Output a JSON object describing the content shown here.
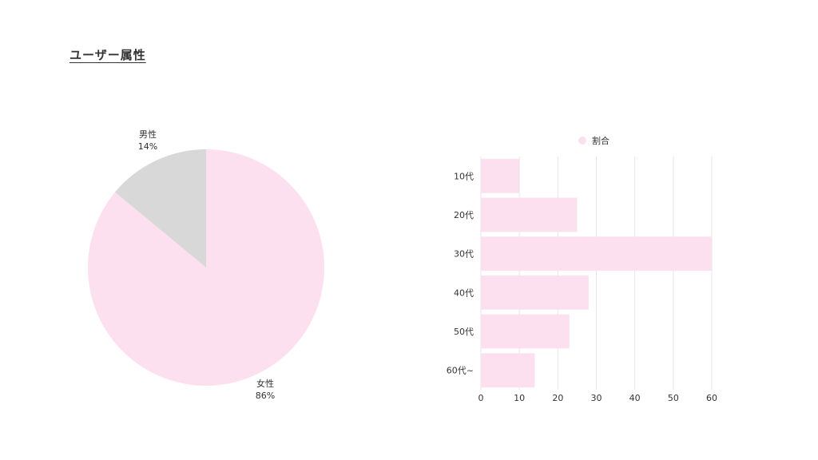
{
  "page": {
    "title": "ユーザー属性"
  },
  "colors": {
    "pink": "#fde0ef",
    "gray": "#d8d8d8",
    "grid": "#e6e6e6",
    "text": "#333333"
  },
  "chart_data": [
    {
      "type": "pie",
      "labels": [
        "女性",
        "男性"
      ],
      "values": [
        86,
        14
      ],
      "value_labels": [
        "86%",
        "14%"
      ],
      "colors": [
        "#fde0ef",
        "#d8d8d8"
      ]
    },
    {
      "type": "bar",
      "orientation": "horizontal",
      "categories": [
        "10代",
        "20代",
        "30代",
        "40代",
        "50代",
        "60代~"
      ],
      "series": [
        {
          "name": "割合",
          "values": [
            10,
            25,
            60,
            28,
            23,
            14
          ],
          "color": "#fde0ef"
        }
      ],
      "xlim": [
        0,
        60
      ],
      "xticks": [
        0,
        10,
        20,
        30,
        40,
        50,
        60
      ],
      "grid": true,
      "legend": "top"
    }
  ]
}
